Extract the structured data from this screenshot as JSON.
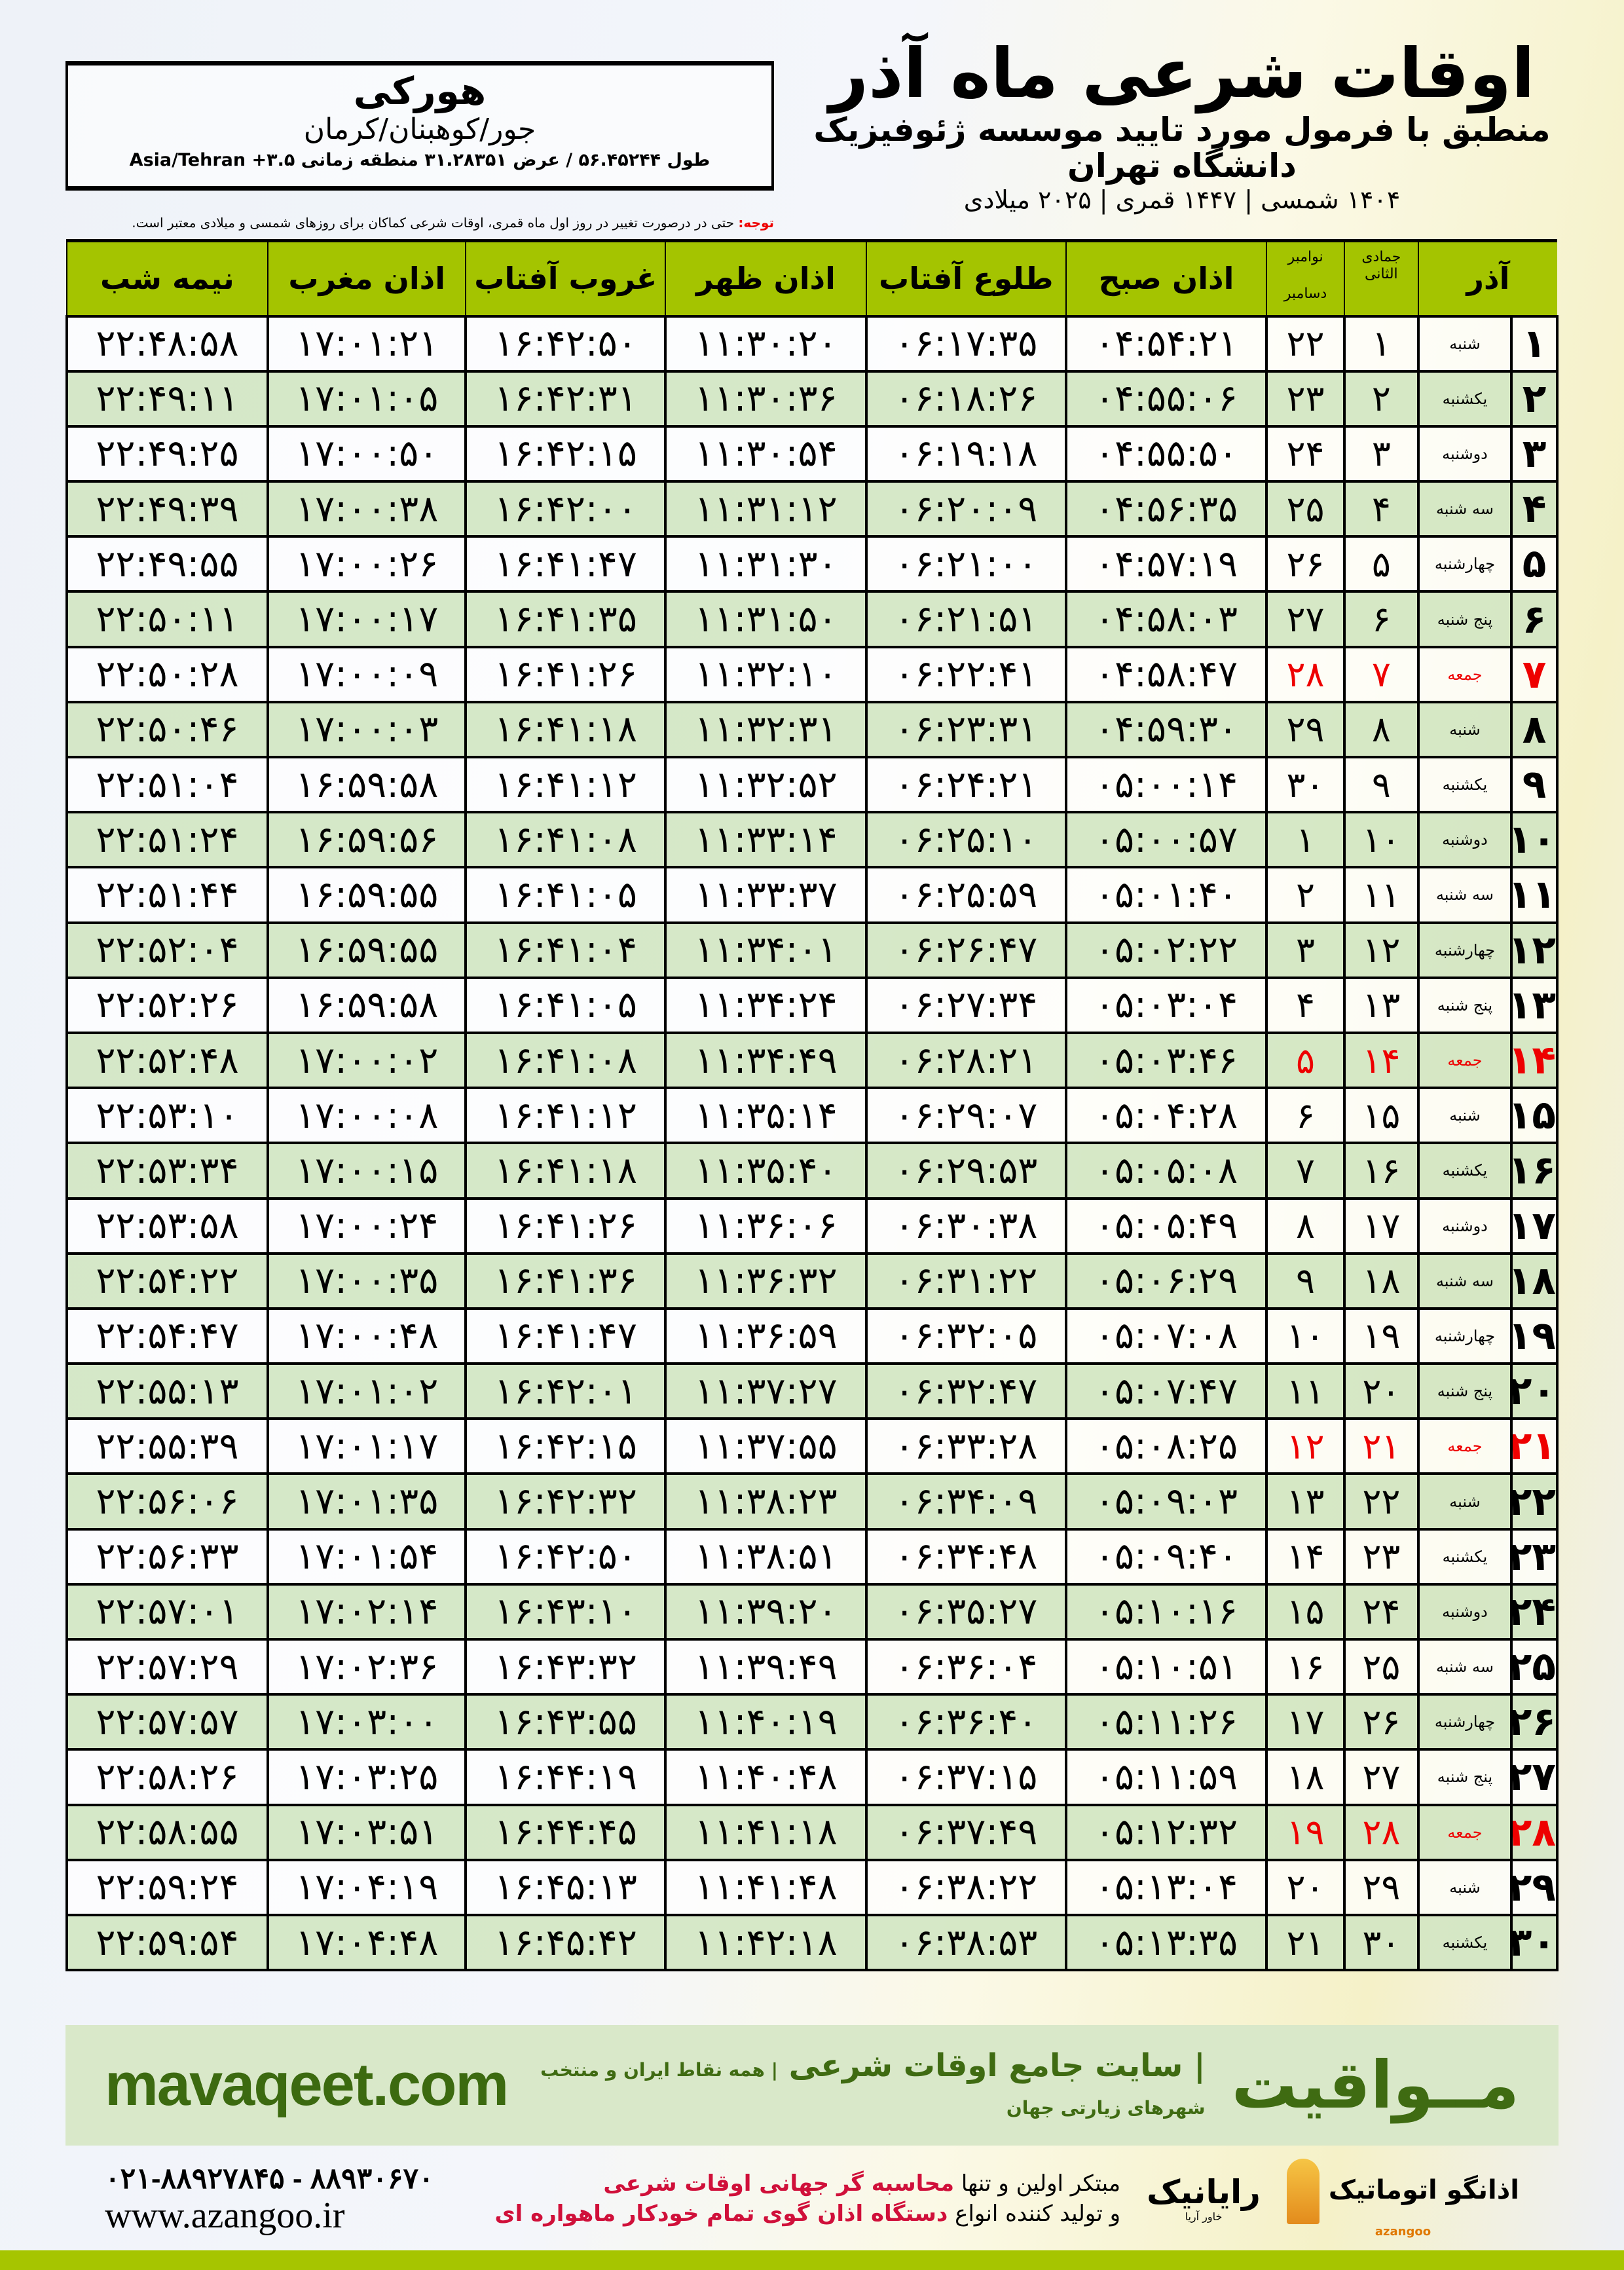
{
  "header": {
    "title": "اوقات شرعی ماه آذر",
    "subtitle": "منطبق با فرمول مورد تایید موسسه ژئوفیزیک دانشگاه تهران",
    "dateline": "۱۴۰۴ شمسی | ۱۴۴۷ قمری | ۲۰۲۵ میلادی"
  },
  "location": {
    "name": "هورکی",
    "region": "جور/کوهبنان/کرمان",
    "coords": "طول ۵۶.۴۵۲۴۴ / عرض ۳۱.۲۸۳۵۱ منطقه زمانی ۳.۵+ Asia/Tehran"
  },
  "note": {
    "label": "توجه:",
    "text": " حتی در درصورت تغییر در روز اول ماه قمری، اوقات شرعی کماکان برای روزهای شمسی و میلادی معتبر است."
  },
  "table": {
    "columns": {
      "month": "آذر",
      "hijri": "جمادی الثانی",
      "greg_top": "نوامبر",
      "greg_bottom": "دسامبر",
      "fajr": "اذان صبح",
      "sunrise": "طلوع آفتاب",
      "dhuhr": "اذان ظهر",
      "sunset": "غروب آفتاب",
      "maghrib": "اذان مغرب",
      "midnight": "نیمه شب"
    },
    "friday_color": "#e00000",
    "rows": [
      [
        "۱",
        "شنبه",
        "۱",
        "۲۲",
        "۰۴:۵۴:۲۱",
        "۰۶:۱۷:۳۵",
        "۱۱:۳۰:۲۰",
        "۱۶:۴۲:۵۰",
        "۱۷:۰۱:۲۱",
        "۲۲:۴۸:۵۸"
      ],
      [
        "۲",
        "یکشنبه",
        "۲",
        "۲۳",
        "۰۴:۵۵:۰۶",
        "۰۶:۱۸:۲۶",
        "۱۱:۳۰:۳۶",
        "۱۶:۴۲:۳۱",
        "۱۷:۰۱:۰۵",
        "۲۲:۴۹:۱۱"
      ],
      [
        "۳",
        "دوشنبه",
        "۳",
        "۲۴",
        "۰۴:۵۵:۵۰",
        "۰۶:۱۹:۱۸",
        "۱۱:۳۰:۵۴",
        "۱۶:۴۲:۱۵",
        "۱۷:۰۰:۵۰",
        "۲۲:۴۹:۲۵"
      ],
      [
        "۴",
        "سه شنبه",
        "۴",
        "۲۵",
        "۰۴:۵۶:۳۵",
        "۰۶:۲۰:۰۹",
        "۱۱:۳۱:۱۲",
        "۱۶:۴۲:۰۰",
        "۱۷:۰۰:۳۸",
        "۲۲:۴۹:۳۹"
      ],
      [
        "۵",
        "چهارشنبه",
        "۵",
        "۲۶",
        "۰۴:۵۷:۱۹",
        "۰۶:۲۱:۰۰",
        "۱۱:۳۱:۳۰",
        "۱۶:۴۱:۴۷",
        "۱۷:۰۰:۲۶",
        "۲۲:۴۹:۵۵"
      ],
      [
        "۶",
        "پنج شنبه",
        "۶",
        "۲۷",
        "۰۴:۵۸:۰۳",
        "۰۶:۲۱:۵۱",
        "۱۱:۳۱:۵۰",
        "۱۶:۴۱:۳۵",
        "۱۷:۰۰:۱۷",
        "۲۲:۵۰:۱۱"
      ],
      [
        "۷",
        "جمعه",
        "۷",
        "۲۸",
        "۰۴:۵۸:۴۷",
        "۰۶:۲۲:۴۱",
        "۱۱:۳۲:۱۰",
        "۱۶:۴۱:۲۶",
        "۱۷:۰۰:۰۹",
        "۲۲:۵۰:۲۸"
      ],
      [
        "۸",
        "شنبه",
        "۸",
        "۲۹",
        "۰۴:۵۹:۳۰",
        "۰۶:۲۳:۳۱",
        "۱۱:۳۲:۳۱",
        "۱۶:۴۱:۱۸",
        "۱۷:۰۰:۰۳",
        "۲۲:۵۰:۴۶"
      ],
      [
        "۹",
        "یکشنبه",
        "۹",
        "۳۰",
        "۰۵:۰۰:۱۴",
        "۰۶:۲۴:۲۱",
        "۱۱:۳۲:۵۲",
        "۱۶:۴۱:۱۲",
        "۱۶:۵۹:۵۸",
        "۲۲:۵۱:۰۴"
      ],
      [
        "۱۰",
        "دوشنبه",
        "۱۰",
        "۱",
        "۰۵:۰۰:۵۷",
        "۰۶:۲۵:۱۰",
        "۱۱:۳۳:۱۴",
        "۱۶:۴۱:۰۸",
        "۱۶:۵۹:۵۶",
        "۲۲:۵۱:۲۴"
      ],
      [
        "۱۱",
        "سه شنبه",
        "۱۱",
        "۲",
        "۰۵:۰۱:۴۰",
        "۰۶:۲۵:۵۹",
        "۱۱:۳۳:۳۷",
        "۱۶:۴۱:۰۵",
        "۱۶:۵۹:۵۵",
        "۲۲:۵۱:۴۴"
      ],
      [
        "۱۲",
        "چهارشنبه",
        "۱۲",
        "۳",
        "۰۵:۰۲:۲۲",
        "۰۶:۲۶:۴۷",
        "۱۱:۳۴:۰۱",
        "۱۶:۴۱:۰۴",
        "۱۶:۵۹:۵۵",
        "۲۲:۵۲:۰۴"
      ],
      [
        "۱۳",
        "پنج شنبه",
        "۱۳",
        "۴",
        "۰۵:۰۳:۰۴",
        "۰۶:۲۷:۳۴",
        "۱۱:۳۴:۲۴",
        "۱۶:۴۱:۰۵",
        "۱۶:۵۹:۵۸",
        "۲۲:۵۲:۲۶"
      ],
      [
        "۱۴",
        "جمعه",
        "۱۴",
        "۵",
        "۰۵:۰۳:۴۶",
        "۰۶:۲۸:۲۱",
        "۱۱:۳۴:۴۹",
        "۱۶:۴۱:۰۸",
        "۱۷:۰۰:۰۲",
        "۲۲:۵۲:۴۸"
      ],
      [
        "۱۵",
        "شنبه",
        "۱۵",
        "۶",
        "۰۵:۰۴:۲۸",
        "۰۶:۲۹:۰۷",
        "۱۱:۳۵:۱۴",
        "۱۶:۴۱:۱۲",
        "۱۷:۰۰:۰۸",
        "۲۲:۵۳:۱۰"
      ],
      [
        "۱۶",
        "یکشنبه",
        "۱۶",
        "۷",
        "۰۵:۰۵:۰۸",
        "۰۶:۲۹:۵۳",
        "۱۱:۳۵:۴۰",
        "۱۶:۴۱:۱۸",
        "۱۷:۰۰:۱۵",
        "۲۲:۵۳:۳۴"
      ],
      [
        "۱۷",
        "دوشنبه",
        "۱۷",
        "۸",
        "۰۵:۰۵:۴۹",
        "۰۶:۳۰:۳۸",
        "۱۱:۳۶:۰۶",
        "۱۶:۴۱:۲۶",
        "۱۷:۰۰:۲۴",
        "۲۲:۵۳:۵۸"
      ],
      [
        "۱۸",
        "سه شنبه",
        "۱۸",
        "۹",
        "۰۵:۰۶:۲۹",
        "۰۶:۳۱:۲۲",
        "۱۱:۳۶:۳۲",
        "۱۶:۴۱:۳۶",
        "۱۷:۰۰:۳۵",
        "۲۲:۵۴:۲۲"
      ],
      [
        "۱۹",
        "چهارشنبه",
        "۱۹",
        "۱۰",
        "۰۵:۰۷:۰۸",
        "۰۶:۳۲:۰۵",
        "۱۱:۳۶:۵۹",
        "۱۶:۴۱:۴۷",
        "۱۷:۰۰:۴۸",
        "۲۲:۵۴:۴۷"
      ],
      [
        "۲۰",
        "پنج شنبه",
        "۲۰",
        "۱۱",
        "۰۵:۰۷:۴۷",
        "۰۶:۳۲:۴۷",
        "۱۱:۳۷:۲۷",
        "۱۶:۴۲:۰۱",
        "۱۷:۰۱:۰۲",
        "۲۲:۵۵:۱۳"
      ],
      [
        "۲۱",
        "جمعه",
        "۲۱",
        "۱۲",
        "۰۵:۰۸:۲۵",
        "۰۶:۳۳:۲۸",
        "۱۱:۳۷:۵۵",
        "۱۶:۴۲:۱۵",
        "۱۷:۰۱:۱۷",
        "۲۲:۵۵:۳۹"
      ],
      [
        "۲۲",
        "شنبه",
        "۲۲",
        "۱۳",
        "۰۵:۰۹:۰۳",
        "۰۶:۳۴:۰۹",
        "۱۱:۳۸:۲۳",
        "۱۶:۴۲:۳۲",
        "۱۷:۰۱:۳۵",
        "۲۲:۵۶:۰۶"
      ],
      [
        "۲۳",
        "یکشنبه",
        "۲۳",
        "۱۴",
        "۰۵:۰۹:۴۰",
        "۰۶:۳۴:۴۸",
        "۱۱:۳۸:۵۱",
        "۱۶:۴۲:۵۰",
        "۱۷:۰۱:۵۴",
        "۲۲:۵۶:۳۳"
      ],
      [
        "۲۴",
        "دوشنبه",
        "۲۴",
        "۱۵",
        "۰۵:۱۰:۱۶",
        "۰۶:۳۵:۲۷",
        "۱۱:۳۹:۲۰",
        "۱۶:۴۳:۱۰",
        "۱۷:۰۲:۱۴",
        "۲۲:۵۷:۰۱"
      ],
      [
        "۲۵",
        "سه شنبه",
        "۲۵",
        "۱۶",
        "۰۵:۱۰:۵۱",
        "۰۶:۳۶:۰۴",
        "۱۱:۳۹:۴۹",
        "۱۶:۴۳:۳۲",
        "۱۷:۰۲:۳۶",
        "۲۲:۵۷:۲۹"
      ],
      [
        "۲۶",
        "چهارشنبه",
        "۲۶",
        "۱۷",
        "۰۵:۱۱:۲۶",
        "۰۶:۳۶:۴۰",
        "۱۱:۴۰:۱۹",
        "۱۶:۴۳:۵۵",
        "۱۷:۰۳:۰۰",
        "۲۲:۵۷:۵۷"
      ],
      [
        "۲۷",
        "پنج شنبه",
        "۲۷",
        "۱۸",
        "۰۵:۱۱:۵۹",
        "۰۶:۳۷:۱۵",
        "۱۱:۴۰:۴۸",
        "۱۶:۴۴:۱۹",
        "۱۷:۰۳:۲۵",
        "۲۲:۵۸:۲۶"
      ],
      [
        "۲۸",
        "جمعه",
        "۲۸",
        "۱۹",
        "۰۵:۱۲:۳۲",
        "۰۶:۳۷:۴۹",
        "۱۱:۴۱:۱۸",
        "۱۶:۴۴:۴۵",
        "۱۷:۰۳:۵۱",
        "۲۲:۵۸:۵۵"
      ],
      [
        "۲۹",
        "شنبه",
        "۲۹",
        "۲۰",
        "۰۵:۱۳:۰۴",
        "۰۶:۳۸:۲۲",
        "۱۱:۴۱:۴۸",
        "۱۶:۴۵:۱۳",
        "۱۷:۰۴:۱۹",
        "۲۲:۵۹:۲۴"
      ],
      [
        "۳۰",
        "یکشنبه",
        "۳۰",
        "۲۱",
        "۰۵:۱۳:۳۵",
        "۰۶:۳۸:۵۳",
        "۱۱:۴۲:۱۸",
        "۱۶:۴۵:۴۲",
        "۱۷:۰۴:۴۸",
        "۲۲:۵۹:۵۴"
      ]
    ]
  },
  "footer": {
    "brand": "مــواقیت",
    "tagline": "| سایت جامع اوقات شرعی",
    "tagline_small": "| همه نقاط ایران و منتخب شهرهای زیارتی جهان",
    "site": "mavaqeet.com",
    "brand_color": "#3f6b12",
    "promo1_a": "مبتکر اولین و تنها ",
    "promo1_b": "محاسبه گر جهانی اوقات شرعی",
    "promo2_a": "و تولید کننده انواع ",
    "promo2_b": "دستگاه اذان گوی تمام خودکار ماهواره ای",
    "phones": "۰۲۱-۸۸۹۲۷۸۴۵ - ۸۸۹۳۰۶۷۰",
    "azangoo_site": "www.azangoo.ir",
    "logo_rayanik": "رایانیک",
    "logo_rayanik_sub": "خاور آریا",
    "logo_azangoo": "اذانگو اتوماتیک",
    "logo_azangoo_sub": "azangoo"
  }
}
